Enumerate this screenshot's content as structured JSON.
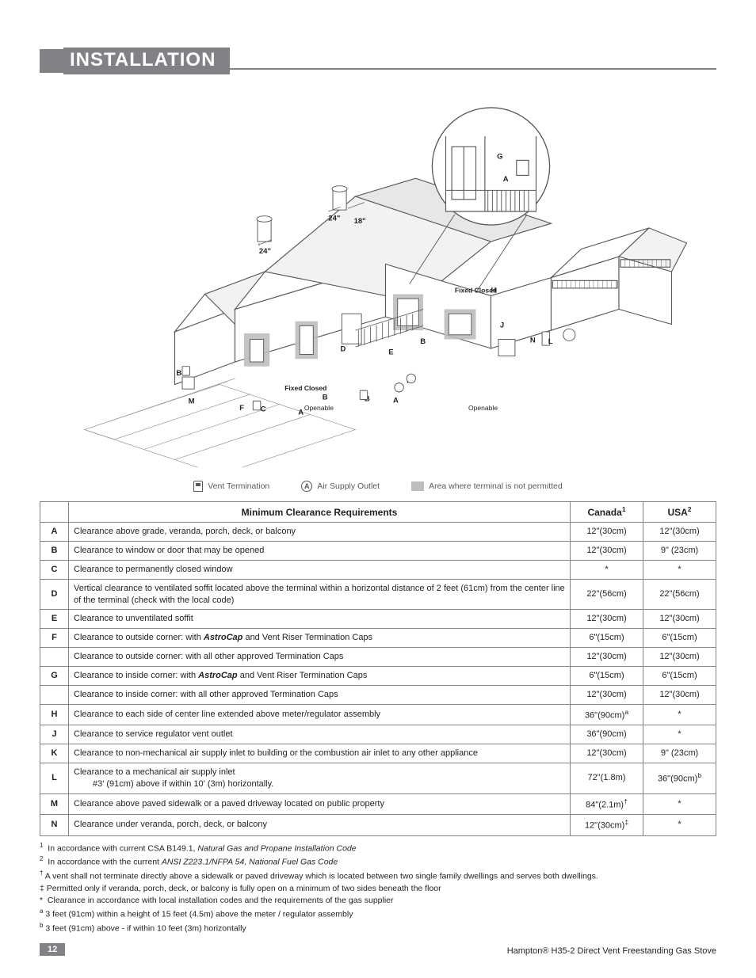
{
  "header": {
    "title": "INSTALLATION"
  },
  "diagram": {
    "labels": {
      "fixed_closed": "Fixed Closed",
      "openable": "Openable",
      "dim_24": "24\"",
      "dim_18": "18\"",
      "letters": [
        "A",
        "B",
        "C",
        "D",
        "E",
        "F",
        "G",
        "H",
        "J",
        "K",
        "L",
        "M",
        "N"
      ]
    }
  },
  "legend": {
    "vent_termination": "Vent Termination",
    "air_supply_outlet": "Air Supply Outlet",
    "not_permitted": "Area where terminal is not permitted"
  },
  "table": {
    "header": {
      "requirements": "Minimum Clearance Requirements",
      "canada": "Canada",
      "canada_sup": "1",
      "usa": "USA",
      "usa_sup": "2"
    },
    "rows": [
      {
        "key": "A",
        "desc": "Clearance above grade, veranda, porch, deck, or balcony",
        "canada": "12\"(30cm)",
        "usa": "12\"(30cm)"
      },
      {
        "key": "B",
        "desc": "Clearance to window or door that may be opened",
        "canada": "12\"(30cm)",
        "usa": "9\" (23cm)"
      },
      {
        "key": "C",
        "desc": "Clearance to permanently closed window",
        "canada": "*",
        "usa": "*"
      },
      {
        "key": "D",
        "desc": "Vertical clearance to ventilated soffit located above the terminal within a horizontal distance of 2 feet (61cm) from the center line of the terminal (check with the local code)",
        "canada": "22\"(56cm)",
        "usa": "22\"(56cm)"
      },
      {
        "key": "E",
        "desc": "Clearance to unventilated soffit",
        "canada": "12\"(30cm)",
        "usa": "12\"(30cm)"
      },
      {
        "key": "F",
        "desc_html": "Clearance to outside corner: with <b><i>AstroCap</i></b> and Vent Riser Termination Caps",
        "canada": "6\"(15cm)",
        "usa": "6\"(15cm)"
      },
      {
        "key": "",
        "desc": "Clearance to outside corner: with all other approved Termination Caps",
        "canada": "12\"(30cm)",
        "usa": "12\"(30cm)"
      },
      {
        "key": "G",
        "desc_html": "Clearance to inside corner: with <b><i>AstroCap</i></b> and Vent Riser Termination Caps",
        "canada": "6\"(15cm)",
        "usa": "6\"(15cm)"
      },
      {
        "key": "",
        "desc": "Clearance to inside corner: with all other approved Termination Caps",
        "canada": "12\"(30cm)",
        "usa": "12\"(30cm)"
      },
      {
        "key": "H",
        "desc": "Clearance to each side of center line extended above meter/regulator assembly",
        "canada_html": "36\"(90cm)<sup>a</sup>",
        "usa": "*"
      },
      {
        "key": "J",
        "desc": "Clearance to service regulator vent outlet",
        "canada": "36\"(90cm)",
        "usa": "*"
      },
      {
        "key": "K",
        "desc": "Clearance to non-mechanical air supply inlet to building or the combustion air inlet to any other appliance",
        "canada": "12\"(30cm)",
        "usa": "9\" (23cm)"
      },
      {
        "key": "L",
        "desc_html": "Clearance to a mechanical air supply inlet<span class=\"indent\">#3' (91cm) above if within 10' (3m) horizontally.</span>",
        "canada": "72\"(1.8m)",
        "usa_html": "36\"(90cm)<sup>b</sup>"
      },
      {
        "key": "M",
        "desc": "Clearance above paved sidewalk or a paved driveway located on public property",
        "canada_html": "84\"(2.1m)<sup>†</sup>",
        "usa": "*"
      },
      {
        "key": "N",
        "desc": "Clearance under veranda, porch, deck, or balcony",
        "canada_html": "12\"(30cm)<sup>‡</sup>",
        "usa": "*"
      }
    ]
  },
  "footnotes": {
    "n1_html": "<sup>1</sup>&nbsp;&nbsp;In accordance with current CSA B149.1, <i>Natural Gas and Propane Installation Code</i>",
    "n2_html": "<sup>2</sup>&nbsp;&nbsp;In accordance with the current <i>ANSI Z223.1/NFPA 54, National  Fuel Gas Code</i>",
    "n3_html": "<sup>†</sup> A vent shall not terminate directly above a sidewalk or paved driveway which is located between two single family dwellings and serves both dwellings.",
    "n4_html": "‡ Permitted only if veranda, porch, deck, or balcony is fully open on a minimum of two sides beneath the floor",
    "n5_html": "*&nbsp;&nbsp;Clearance in accordance with local installation codes and the requirements of the gas supplier",
    "n6_html": "<sup>a</sup> 3 feet (91cm) within a height of 15 feet (4.5m) above the meter / regulator assembly",
    "n7_html": "<sup>b</sup> 3 feet (91cm) above  - if within 10 feet (3m) horizontally"
  },
  "footer": {
    "page_number": "12",
    "product": "Hampton® H35-2 Direct Vent Freestanding Gas Stove"
  },
  "colors": {
    "grey": "#808285",
    "lightgrey": "#bcbec0",
    "text": "#231f20",
    "midgrey": "#58595b"
  }
}
